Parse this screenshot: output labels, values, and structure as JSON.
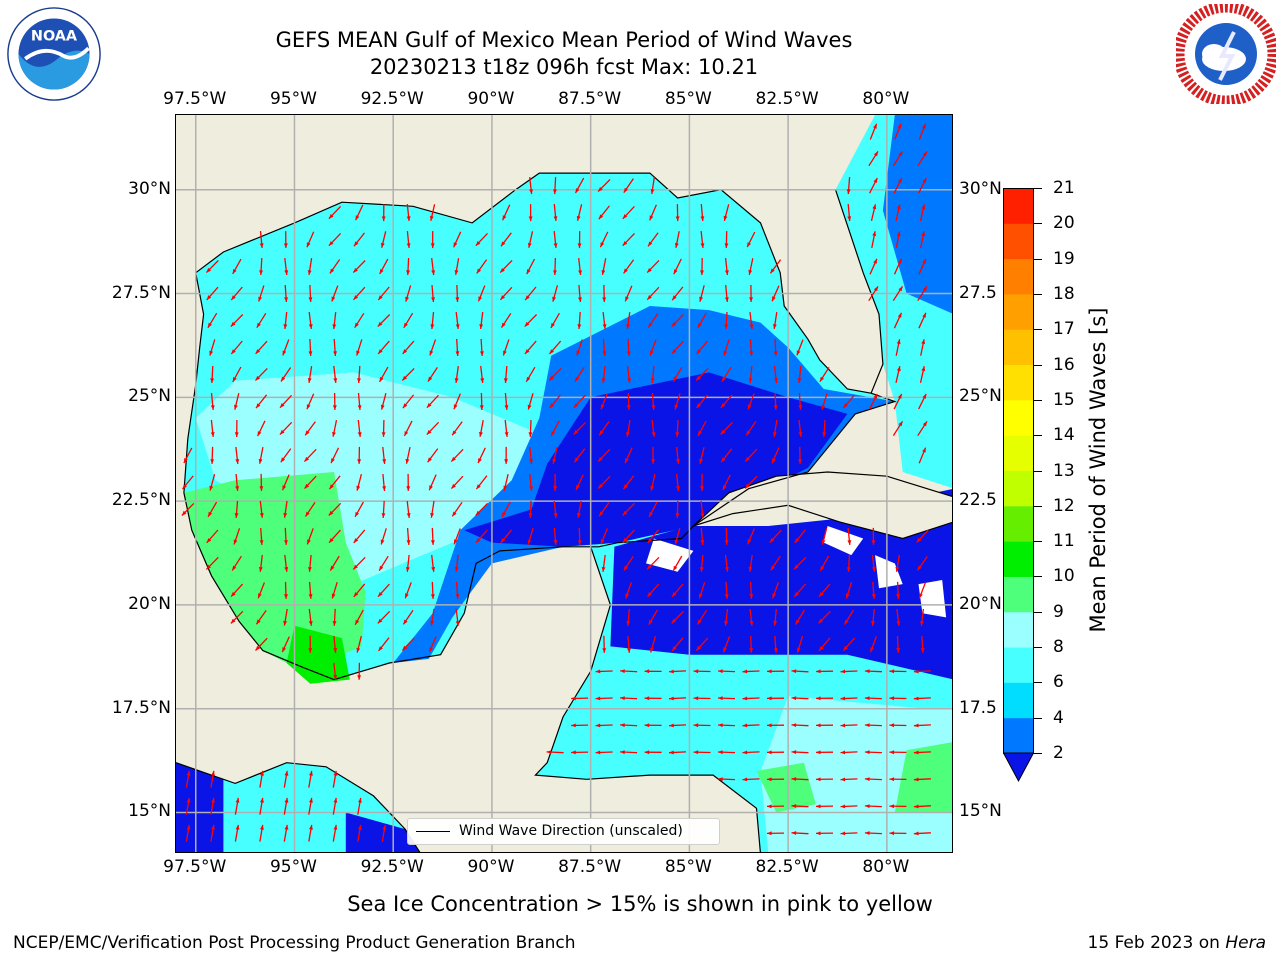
{
  "title": {
    "line1": "GEFS MEAN Gulf of Mexico Mean Period of Wind Waves",
    "line2": "20230213 t18z 096h fcst   Max: 10.21"
  },
  "map": {
    "lon_ticks": [
      "97.5°W",
      "95°W",
      "92.5°W",
      "90°W",
      "87.5°W",
      "85°W",
      "82.5°W",
      "80°W"
    ],
    "lat_ticks_left": [
      "30°N",
      "27.5°N",
      "25°N",
      "22.5°N",
      "20°N",
      "17.5°N",
      "15°N"
    ],
    "lat_ticks_right": [
      "30°N",
      "27.5",
      "25°N",
      "22.5",
      "20°N",
      "17.5",
      "15°N"
    ],
    "extent": {
      "lon_min": -98,
      "lon_max": -78.3,
      "lat_min": 14,
      "lat_max": 31.8
    },
    "colors": {
      "land": "#efedde",
      "grid": "#b0b0b0",
      "arrow": "#ff0000",
      "coast": "#000000"
    },
    "legend_label": "Wind Wave Direction (unscaled)"
  },
  "colorbar": {
    "label": "Mean Period of Wind Waves [s]",
    "ticks": [
      "2",
      "4",
      "6",
      "8",
      "9",
      "10",
      "11",
      "12",
      "13",
      "14",
      "15",
      "16",
      "17",
      "18",
      "19",
      "20",
      "21"
    ],
    "levels": [
      2,
      4,
      6,
      8,
      9,
      10,
      11,
      12,
      13,
      14,
      15,
      16,
      17,
      18,
      19,
      20,
      21
    ],
    "colors": [
      "#0078ff",
      "#00ddff",
      "#47ffff",
      "#9cffff",
      "#4dff7a",
      "#00ee00",
      "#66ee00",
      "#c0ff00",
      "#e6ff00",
      "#ffff00",
      "#ffe000",
      "#ffc000",
      "#ffa000",
      "#ff8000",
      "#ff5000",
      "#ff2000"
    ],
    "under_color": "#0a14e6"
  },
  "caption": "Sea Ice Concentration > 15% is shown in pink to yellow",
  "footer": {
    "left": "NCEP/EMC/Verification Post Processing Product Generation Branch",
    "right_date": "15 Feb 2023 on ",
    "right_host": "Hera"
  },
  "logos": {
    "noaa_text": "NOAA"
  }
}
